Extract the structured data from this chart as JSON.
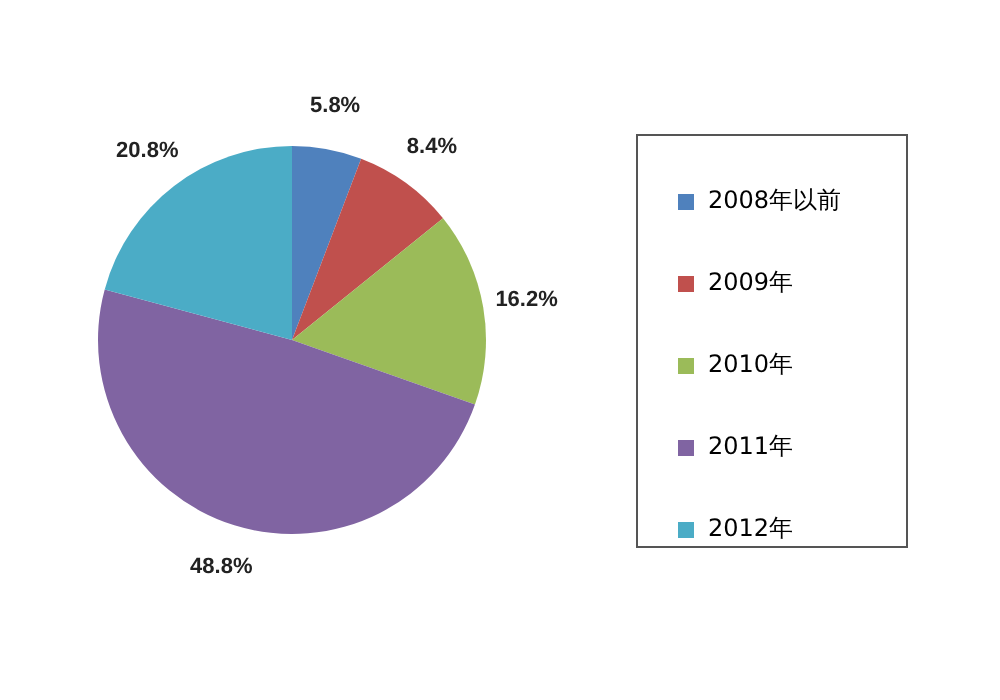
{
  "chart_data": {
    "type": "pie",
    "categories": [
      "2008年以前",
      "2009年",
      "2010年",
      "2011年",
      "2012年"
    ],
    "values": [
      5.8,
      8.4,
      16.2,
      48.8,
      20.8
    ],
    "colors": [
      "#4f81bd",
      "#c0504d",
      "#9bbb59",
      "#8064a2",
      "#4bacc6"
    ],
    "value_labels": [
      "5.8%",
      "8.4%",
      "16.2%",
      "48.8%",
      "20.8%"
    ],
    "legend": "right"
  }
}
